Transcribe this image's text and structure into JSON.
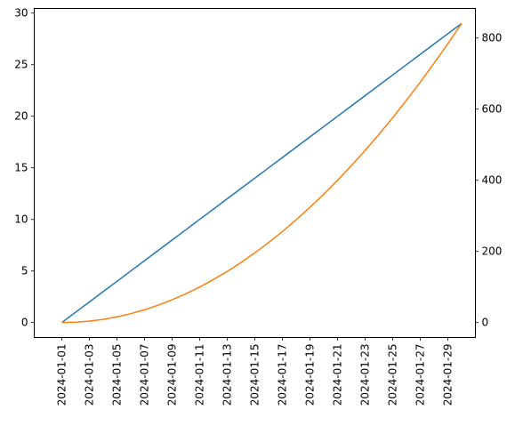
{
  "chart_data": {
    "type": "line",
    "title": "",
    "xlabel": "",
    "ylabel": "",
    "y2label": "",
    "x": [
      "2024-01-01",
      "2024-01-02",
      "2024-01-03",
      "2024-01-04",
      "2024-01-05",
      "2024-01-06",
      "2024-01-07",
      "2024-01-08",
      "2024-01-09",
      "2024-01-10",
      "2024-01-11",
      "2024-01-12",
      "2024-01-13",
      "2024-01-14",
      "2024-01-15",
      "2024-01-16",
      "2024-01-17",
      "2024-01-18",
      "2024-01-19",
      "2024-01-20",
      "2024-01-21",
      "2024-01-22",
      "2024-01-23",
      "2024-01-24",
      "2024-01-25",
      "2024-01-26",
      "2024-01-27",
      "2024-01-28",
      "2024-01-29",
      "2024-01-30"
    ],
    "series": [
      {
        "axis": "left",
        "color": "#1f77b4",
        "values": [
          0,
          1,
          2,
          3,
          4,
          5,
          6,
          7,
          8,
          9,
          10,
          11,
          12,
          13,
          14,
          15,
          16,
          17,
          18,
          19,
          20,
          21,
          22,
          23,
          24,
          25,
          26,
          27,
          28,
          29
        ]
      },
      {
        "axis": "right",
        "color": "#ff7f0e",
        "values": [
          0,
          1,
          4,
          9,
          16,
          25,
          36,
          49,
          64,
          81,
          100,
          121,
          144,
          169,
          196,
          225,
          256,
          289,
          324,
          361,
          400,
          441,
          484,
          529,
          576,
          625,
          676,
          729,
          784,
          841
        ]
      }
    ],
    "xlim": [
      "2023-12-30",
      "2024-01-31"
    ],
    "ylim": [
      -1.45,
      30.45
    ],
    "y2lim": [
      -42.05,
      883.05
    ],
    "x_tick_labels": [
      "2024-01-01",
      "2024-01-03",
      "2024-01-05",
      "2024-01-07",
      "2024-01-09",
      "2024-01-11",
      "2024-01-13",
      "2024-01-15",
      "2024-01-17",
      "2024-01-19",
      "2024-01-21",
      "2024-01-23",
      "2024-01-25",
      "2024-01-27",
      "2024-01-29"
    ],
    "y_tick_labels": [
      "0",
      "5",
      "10",
      "15",
      "20",
      "25",
      "30"
    ],
    "y2_tick_labels": [
      "0",
      "200",
      "400",
      "600",
      "800"
    ],
    "grid": false,
    "legend": "none"
  }
}
